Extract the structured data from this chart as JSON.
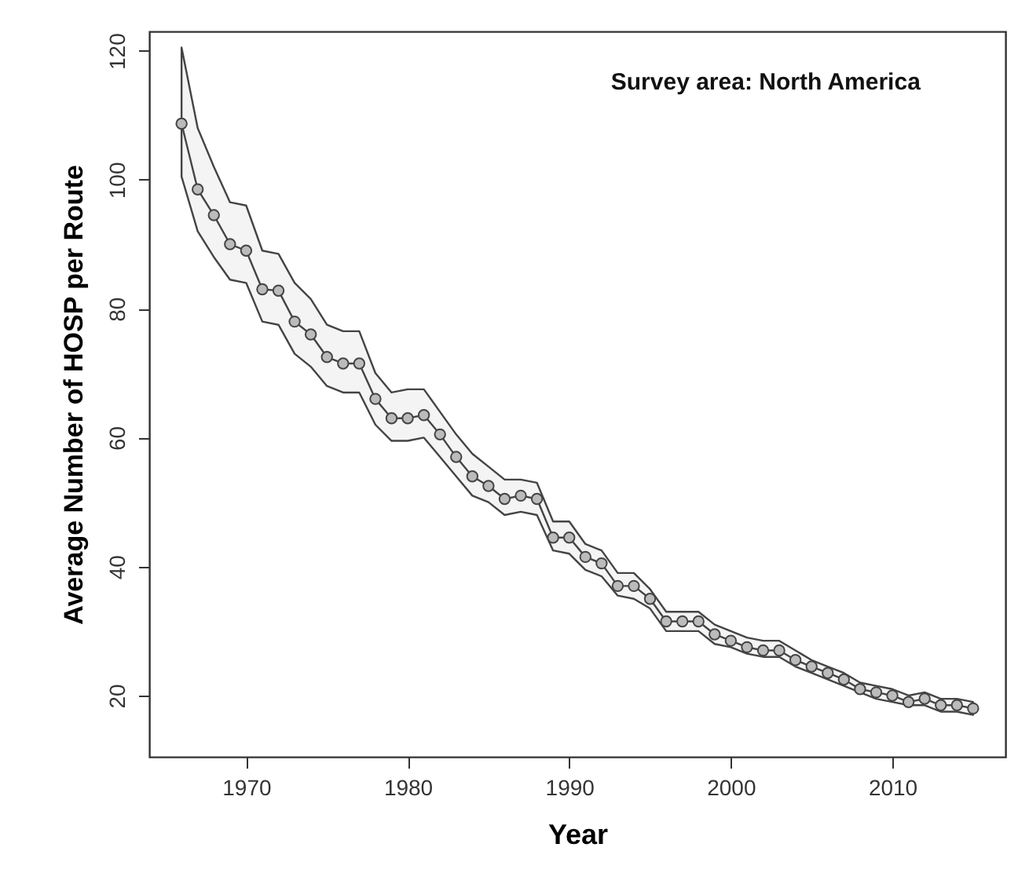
{
  "chart_data": {
    "type": "line",
    "xlabel": "Year",
    "ylabel": "Average Number of  HOSP per Route",
    "annotations": [
      "Survey area: North America"
    ],
    "x": [
      1966,
      1967,
      1968,
      1969,
      1970,
      1971,
      1972,
      1973,
      1974,
      1975,
      1976,
      1977,
      1978,
      1979,
      1980,
      1981,
      1982,
      1983,
      1984,
      1985,
      1986,
      1987,
      1988,
      1989,
      1990,
      1991,
      1992,
      1993,
      1994,
      1995,
      1996,
      1997,
      1998,
      1999,
      2000,
      2001,
      2002,
      2003,
      2004,
      2005,
      2006,
      2007,
      2008,
      2009,
      2010,
      2011,
      2012,
      2013,
      2014,
      2015
    ],
    "series": [
      {
        "color": "#444444",
        "values": [
          108.7,
          98.5,
          94.5,
          90,
          89,
          83,
          82.8,
          78,
          76,
          72.5,
          71.5,
          71.5,
          66,
          63,
          63,
          63.5,
          60.5,
          57,
          54,
          52.5,
          50.5,
          51,
          50.5,
          44.5,
          44.5,
          41.5,
          40.5,
          37,
          37,
          35,
          31.5,
          31.5,
          31.5,
          29.5,
          28.5,
          27.5,
          27,
          27,
          25.5,
          24.5,
          23.5,
          22.5,
          21,
          20.5,
          20,
          19,
          19.5,
          18.5,
          18.5,
          18
        ],
        "lower": [
          100.5,
          92,
          88,
          84.5,
          84,
          78,
          77.5,
          73,
          71,
          68,
          67,
          67,
          62,
          59.5,
          59.5,
          60,
          57,
          54,
          51,
          50,
          48,
          48.5,
          48,
          42.5,
          42,
          39.5,
          38.5,
          35.5,
          35,
          33.5,
          30,
          30,
          30,
          28,
          27.5,
          26.5,
          26,
          26,
          24.5,
          23.5,
          22.5,
          21.5,
          20.5,
          19.5,
          19,
          18.5,
          18.5,
          17.5,
          17.5,
          17
        ],
        "upper": [
          120.5,
          108,
          102,
          96.5,
          96,
          89,
          88.5,
          84,
          81.5,
          77.5,
          76.5,
          76.5,
          70,
          67,
          67.5,
          67.5,
          64,
          60.5,
          57.5,
          55.5,
          53.5,
          53.5,
          53,
          47,
          47,
          43.5,
          42.5,
          39,
          39,
          36.5,
          33,
          33,
          33,
          31,
          30,
          29,
          28.5,
          28.5,
          27,
          25.5,
          24.5,
          23.5,
          22,
          21.5,
          21,
          20,
          20.5,
          19.5,
          19.5,
          19
        ]
      }
    ],
    "xlim": [
      1964,
      2017
    ],
    "xticks": [
      1970,
      1980,
      1990,
      2000,
      2010
    ],
    "ylim": [
      10.5,
      123
    ],
    "yticks": [
      20,
      40,
      60,
      80,
      100,
      120
    ],
    "grid": false,
    "marker": "circle",
    "line_style": "solid"
  }
}
